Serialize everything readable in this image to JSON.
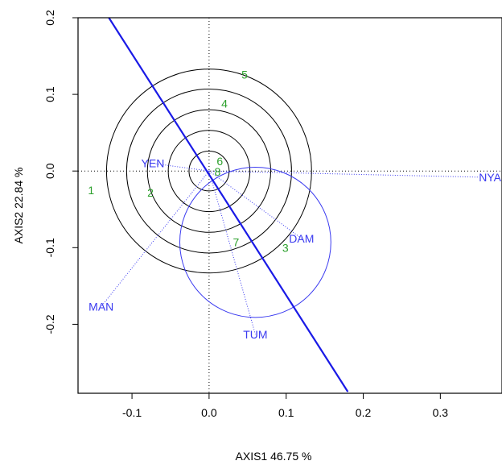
{
  "chart_data": {
    "type": "scatter",
    "title": "",
    "xlabel": "AXIS1 46.75 %",
    "ylabel": "AXIS2 22.84 %",
    "xlim": [
      -0.17,
      0.38
    ],
    "ylim": [
      -0.29,
      0.2
    ],
    "xticks": [
      -0.1,
      0.0,
      0.1,
      0.2,
      0.3
    ],
    "xtick_labels": [
      "-0.1",
      "0.0",
      "0.1",
      "0.2",
      "0.3"
    ],
    "yticks": [
      -0.2,
      -0.1,
      0.0,
      0.1,
      0.2
    ],
    "ytick_labels": [
      "-0.2",
      "-0.1",
      "0.0",
      "0.1",
      "0.2"
    ],
    "reference_lines": {
      "x": 0,
      "y": 0,
      "style": "dotted"
    },
    "site_points": [
      {
        "label": "1",
        "x": -0.153,
        "y": -0.025
      },
      {
        "label": "2",
        "x": -0.076,
        "y": -0.028
      },
      {
        "label": "3",
        "x": 0.099,
        "y": -0.1
      },
      {
        "label": "4",
        "x": 0.02,
        "y": 0.088
      },
      {
        "label": "5",
        "x": 0.046,
        "y": 0.126
      },
      {
        "label": "6",
        "x": 0.014,
        "y": 0.013
      },
      {
        "label": "7",
        "x": 0.035,
        "y": -0.093
      },
      {
        "label": "8",
        "x": 0.011,
        "y": -0.001
      }
    ],
    "concentric_circles": {
      "center": [
        0.0,
        0.0
      ],
      "radii": [
        0.026,
        0.053,
        0.08,
        0.107,
        0.133
      ],
      "color": "#000000"
    },
    "variable_vectors": [
      {
        "label": "YEN",
        "x": -0.073,
        "y": 0.01
      },
      {
        "label": "NYA",
        "x": 0.35,
        "y": -0.008
      },
      {
        "label": "DAM",
        "x": 0.12,
        "y": -0.088
      },
      {
        "label": "MAN",
        "x": -0.14,
        "y": -0.177
      },
      {
        "label": "TUM",
        "x": 0.06,
        "y": -0.213
      }
    ],
    "ellipse": {
      "center": [
        0.06,
        -0.093
      ],
      "radius": 0.098,
      "color": "#3a3af0"
    },
    "regression_line": {
      "x": [
        -0.13,
        0.18
      ],
      "y": [
        0.2,
        -0.288
      ],
      "color": "#1a1ae6"
    },
    "colors": {
      "sites": "#2ca02c",
      "variables": "#3a3af0",
      "line": "#1a1ae6",
      "axes": "#000000"
    }
  }
}
